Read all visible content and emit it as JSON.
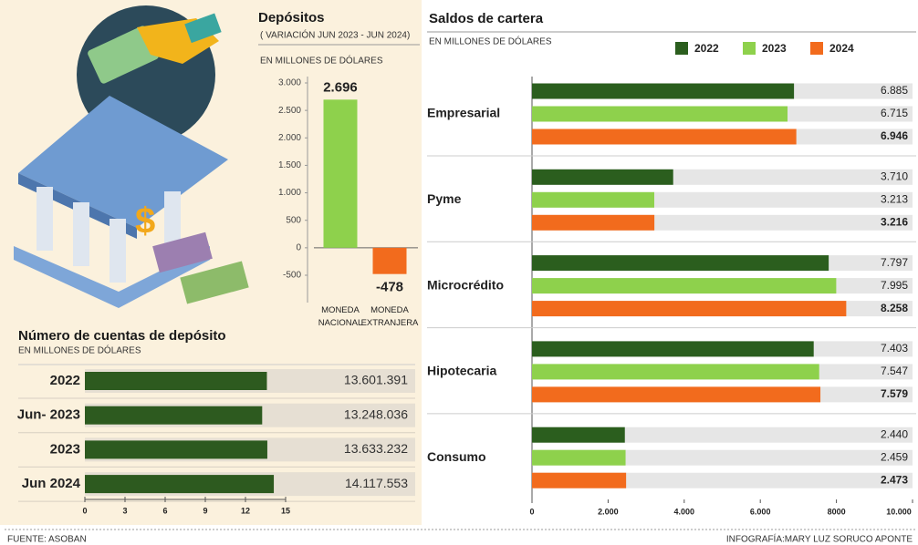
{
  "chart_data": [
    {
      "type": "bar",
      "title": "Depósitos",
      "subtitle": "( VARIACIÓN JUN 2023 - JUN 2024)",
      "unit": "EN MILLONES DE DÓLARES",
      "categories": [
        "MONEDA NACIONAL",
        "MONEDA EXTRANJERA"
      ],
      "values": [
        2696,
        -478
      ],
      "value_labels": [
        "2.696",
        "-478"
      ],
      "colors": [
        "#8ed14c",
        "#f26b1d"
      ],
      "ylim": [
        -500,
        3000
      ],
      "yticks": [
        {
          "value": 3000,
          "label": "3.000"
        },
        {
          "value": 2500,
          "label": "2.500"
        },
        {
          "value": 2000,
          "label": "2.000"
        },
        {
          "value": 1500,
          "label": "1.500"
        },
        {
          "value": 1000,
          "label": "1.000"
        },
        500,
        0,
        -500
      ]
    },
    {
      "type": "bar",
      "horizontal": true,
      "title": "Número de cuentas de depósito",
      "unit": "EN MILLONES DE DÓLARES",
      "categories": [
        "2022",
        "Jun- 2023",
        "2023",
        "Jun 2024"
      ],
      "values": [
        13.601391,
        13.248036,
        13.633232,
        14.117553
      ],
      "value_labels": [
        "13.601.391",
        "13.248.036",
        "13.633.232",
        "14.117.553"
      ],
      "color": "#2d5a1f",
      "xlim": [
        0,
        15
      ],
      "xticks": [
        0,
        3,
        6,
        9,
        12,
        15
      ]
    },
    {
      "type": "bar",
      "horizontal": true,
      "title": "Saldos de cartera",
      "unit": "EN MILLONES DE DÓLARES",
      "categories": [
        "Empresarial",
        "Pyme",
        "Microcrédito",
        "Hipotecaria",
        "Consumo"
      ],
      "series": [
        {
          "name": "2022",
          "color": "#2b5e1e",
          "values": [
            6885,
            3710,
            7797,
            7403,
            2440
          ],
          "value_labels": [
            "6.885",
            "3.710",
            "7.797",
            "7.403",
            "2.440"
          ]
        },
        {
          "name": "2023",
          "color": "#8ed14c",
          "values": [
            6715,
            3213,
            7995,
            7547,
            2459
          ],
          "value_labels": [
            "6.715",
            "3.213",
            "7.995",
            "7.547",
            "2.459"
          ]
        },
        {
          "name": "2024",
          "color": "#f26b1d",
          "values": [
            6946,
            3216,
            8258,
            7579,
            2473
          ],
          "value_labels": [
            "6.946",
            "3.216",
            "8.258",
            "7.579",
            "2.473"
          ]
        }
      ],
      "legend": "top-right",
      "xlim": [
        0,
        10000
      ],
      "xticks": [
        0,
        {
          "value": 2000,
          "label": "2.000"
        },
        {
          "value": 4000,
          "label": "4.000"
        },
        {
          "value": 6000,
          "label": "6.000"
        },
        8000,
        {
          "value": 10000,
          "label": "10.000"
        }
      ]
    }
  ],
  "footer": {
    "source": "FUENTE: ASOBAN",
    "credit": "INFOGRAFÍA:MARY LUZ SORUCO APONTE"
  }
}
